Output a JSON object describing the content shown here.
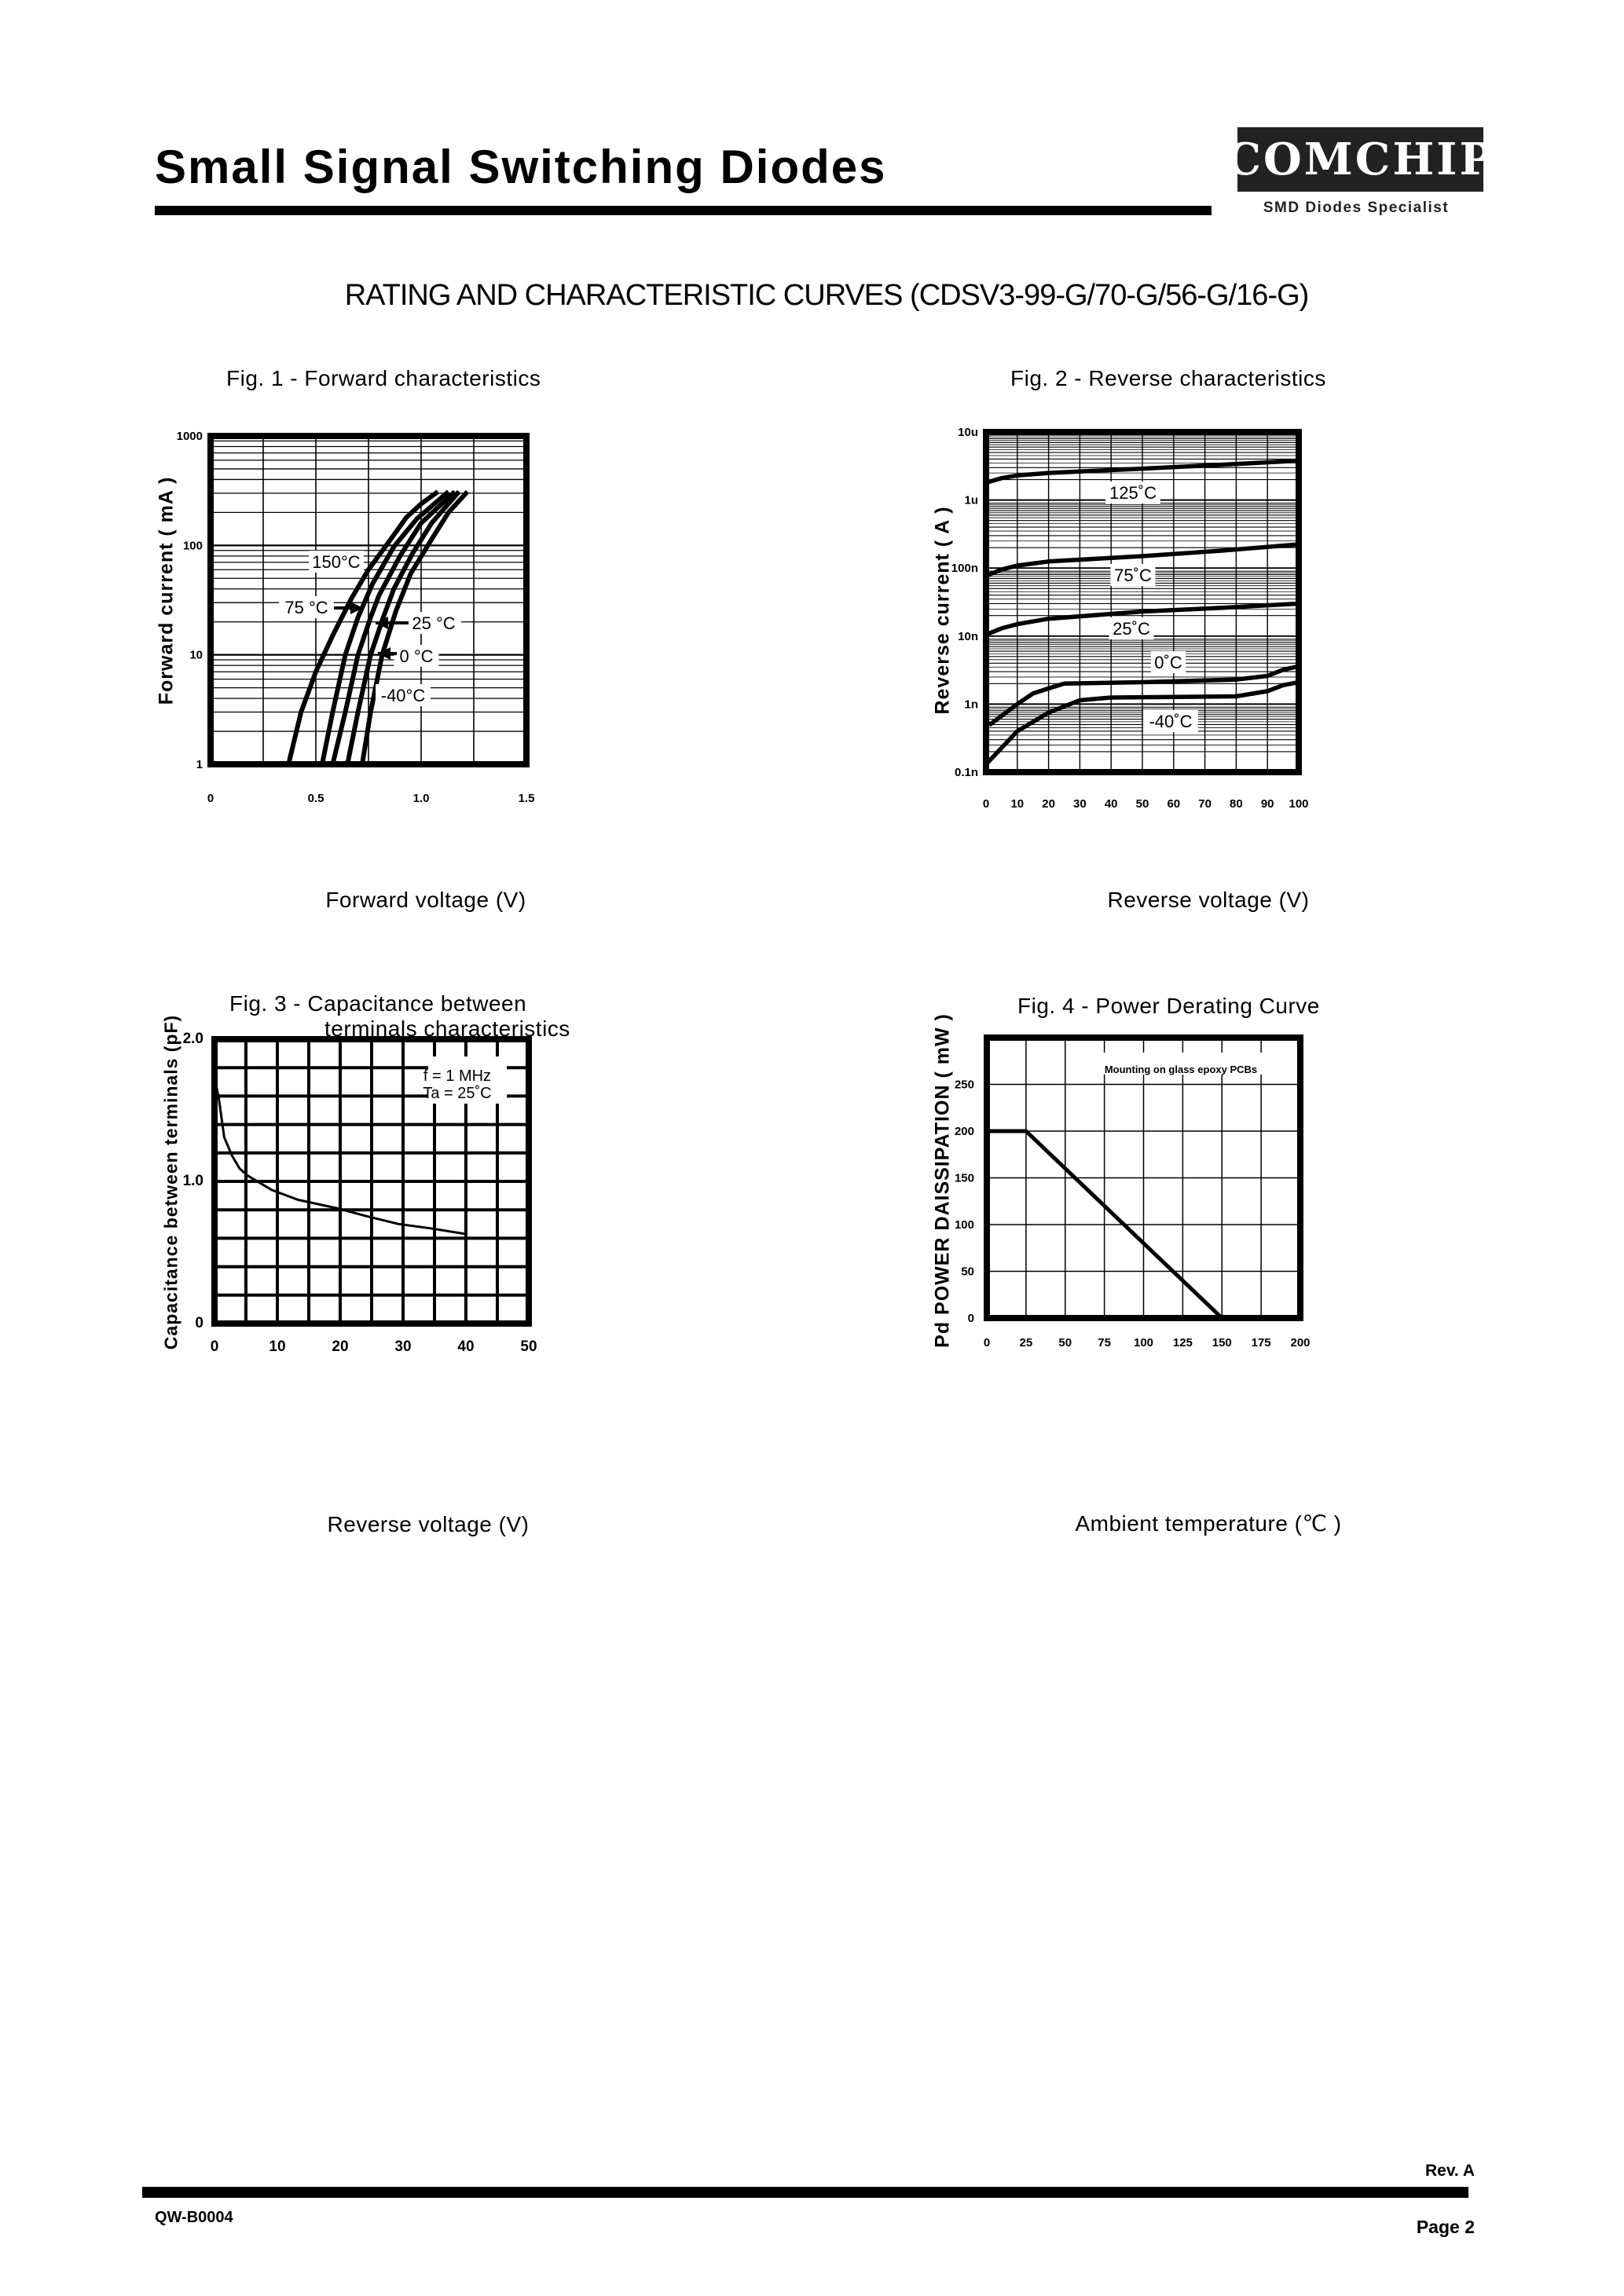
{
  "header": {
    "title": "Small Signal Switching Diodes",
    "logo_text": "COMCHIP",
    "logo_tagline": "SMD Diodes Specialist"
  },
  "subtitle": "RATING AND CHARACTERISTIC CURVES (CDSV3-99-G/70-G/56-G/16-G)",
  "footer": {
    "revision": "Rev. A",
    "doc_number": "QW-B0004",
    "page": "Page 2"
  },
  "chart_data": [
    {
      "type": "line",
      "title": "Fig. 1 -  Forward characteristics",
      "xlabel": "Forward voltage (V)",
      "ylabel": "Forward current ( mA )",
      "xlim": [
        0,
        1.5
      ],
      "ylim": [
        1,
        1000
      ],
      "yscale": "log",
      "grid": true,
      "x_ticks": [
        {
          "value": 0,
          "label": "0"
        },
        {
          "value": 0.5,
          "label": "0.5"
        },
        {
          "value": 1.0,
          "label": "1.0"
        },
        {
          "value": 1.5,
          "label": "1.5"
        }
      ],
      "y_ticks": [
        {
          "value": 1,
          "label": "1"
        },
        {
          "value": 10,
          "label": "10"
        },
        {
          "value": 100,
          "label": "100"
        },
        {
          "value": 1000,
          "label": "1000"
        }
      ],
      "series": [
        {
          "name": "150°C",
          "points": [
            [
              0.37,
              1
            ],
            [
              0.43,
              3
            ],
            [
              0.5,
              7
            ],
            [
              0.58,
              15
            ],
            [
              0.67,
              33
            ],
            [
              0.75,
              60
            ],
            [
              0.85,
              110
            ],
            [
              0.93,
              180
            ],
            [
              1.0,
              240
            ],
            [
              1.08,
              310
            ]
          ]
        },
        {
          "name": "75 °C",
          "points": [
            [
              0.53,
              1
            ],
            [
              0.58,
              3
            ],
            [
              0.64,
              10
            ],
            [
              0.7,
              22
            ],
            [
              0.77,
              45
            ],
            [
              0.87,
              97
            ],
            [
              0.98,
              175
            ],
            [
              1.13,
              310
            ]
          ]
        },
        {
          "name": "25 °C",
          "points": [
            [
              0.58,
              1
            ],
            [
              0.64,
              3
            ],
            [
              0.7,
              10
            ],
            [
              0.76,
              22
            ],
            [
              0.8,
              35
            ],
            [
              0.9,
              80
            ],
            [
              1.0,
              160
            ],
            [
              1.16,
              310
            ]
          ]
        },
        {
          "name": "0 °C",
          "points": [
            [
              0.65,
              1
            ],
            [
              0.7,
              3
            ],
            [
              0.76,
              10
            ],
            [
              0.82,
              22
            ],
            [
              0.87,
              40
            ],
            [
              0.96,
              85
            ],
            [
              1.05,
              160
            ],
            [
              1.18,
              310
            ]
          ]
        },
        {
          "name": "-40°C",
          "points": [
            [
              0.72,
              1
            ],
            [
              0.76,
              3
            ],
            [
              0.815,
              10
            ],
            [
              0.88,
              25
            ],
            [
              0.95,
              55
            ],
            [
              1.045,
              110
            ],
            [
              1.13,
              200
            ],
            [
              1.22,
              310
            ]
          ]
        }
      ]
    },
    {
      "type": "line",
      "title": "Fig. 2 -  Reverse characteristics",
      "xlabel": "Reverse voltage (V)",
      "ylabel": "Reverse  current ( A )",
      "xlim": [
        0,
        100
      ],
      "ylim": [
        1e-10,
        1e-05
      ],
      "yscale": "log",
      "grid": true,
      "x_ticks": [
        {
          "value": 0,
          "label": "0"
        },
        {
          "value": 10,
          "label": "10"
        },
        {
          "value": 20,
          "label": "20"
        },
        {
          "value": 30,
          "label": "30"
        },
        {
          "value": 40,
          "label": "40"
        },
        {
          "value": 50,
          "label": "50"
        },
        {
          "value": 60,
          "label": "60"
        },
        {
          "value": 70,
          "label": "70"
        },
        {
          "value": 80,
          "label": "80"
        },
        {
          "value": 90,
          "label": "90"
        },
        {
          "value": 100,
          "label": "100"
        }
      ],
      "y_ticks": [
        {
          "value": 1e-10,
          "label": "0.1n"
        },
        {
          "value": 1e-09,
          "label": "1n"
        },
        {
          "value": 1e-08,
          "label": "10n"
        },
        {
          "value": 1e-07,
          "label": "100n"
        },
        {
          "value": 1e-06,
          "label": "1u"
        },
        {
          "value": 1e-05,
          "label": "10u"
        }
      ],
      "series": [
        {
          "name": "125˚C",
          "points": [
            [
              0,
              1.8e-06
            ],
            [
              5,
              2.1e-06
            ],
            [
              10,
              2.3e-06
            ],
            [
              20,
              2.5e-06
            ],
            [
              50,
              2.9e-06
            ],
            [
              75,
              3.3e-06
            ],
            [
              100,
              3.8e-06
            ]
          ]
        },
        {
          "name": "75˚C",
          "points": [
            [
              0,
              7.7e-08
            ],
            [
              5,
              9.5e-08
            ],
            [
              10,
              1.09e-07
            ],
            [
              20,
              1.25e-07
            ],
            [
              50,
              1.5e-07
            ],
            [
              75,
              1.8e-07
            ],
            [
              100,
              2.23e-07
            ]
          ]
        },
        {
          "name": "25˚C",
          "points": [
            [
              0,
              1.05e-08
            ],
            [
              5,
              1.3e-08
            ],
            [
              10,
              1.5e-08
            ],
            [
              20,
              1.8e-08
            ],
            [
              50,
              2.3e-08
            ],
            [
              75,
              2.6e-08
            ],
            [
              100,
              3e-08
            ]
          ]
        },
        {
          "name": "0˚C",
          "points": [
            [
              1,
              4.9e-10
            ],
            [
              10,
              1e-09
            ],
            [
              15,
              1.43e-09
            ],
            [
              20,
              1.7e-09
            ],
            [
              25,
              2e-09
            ],
            [
              50,
              2.1e-09
            ],
            [
              80,
              2.3e-09
            ],
            [
              90,
              2.6e-09
            ],
            [
              95,
              3.2e-09
            ],
            [
              100,
              3.6e-09
            ]
          ]
        },
        {
          "name": "-40˚C",
          "points": [
            [
              0,
              1.3e-10
            ],
            [
              10,
              4e-10
            ],
            [
              20,
              7.5e-10
            ],
            [
              30,
              1.14e-09
            ],
            [
              40,
              1.25e-09
            ],
            [
              80,
              1.3e-09
            ],
            [
              90,
              1.55e-09
            ],
            [
              95,
              1.9e-09
            ],
            [
              100,
              2.1e-09
            ]
          ]
        }
      ]
    },
    {
      "type": "line",
      "title": "Fig. 3 -  Capacitance between",
      "title_line2": "terminals characteristics",
      "xlabel": "Reverse voltage (V)",
      "ylabel": "Capacitance between terminals (pF)",
      "xlim": [
        0,
        50
      ],
      "ylim": [
        0,
        2.0
      ],
      "grid": true,
      "x_ticks": [
        {
          "value": 0,
          "label": "0"
        },
        {
          "value": 10,
          "label": "10"
        },
        {
          "value": 20,
          "label": "20"
        },
        {
          "value": 30,
          "label": "30"
        },
        {
          "value": 40,
          "label": "40"
        },
        {
          "value": 50,
          "label": "50"
        }
      ],
      "y_ticks": [
        {
          "value": 0,
          "label": "0"
        },
        {
          "value": 1.0,
          "label": "1.0"
        },
        {
          "value": 2.0,
          "label": "2.0"
        }
      ],
      "annotations": [
        "f = 1 MHz",
        "Ta = 25˚C"
      ],
      "series": [
        {
          "points": [
            [
              0.1,
              1.71
            ],
            [
              0.7,
              1.58
            ],
            [
              1.55,
              1.31
            ],
            [
              2.8,
              1.18
            ],
            [
              4,
              1.09
            ],
            [
              5.3,
              1.04
            ],
            [
              7.2,
              0.99
            ],
            [
              9.1,
              0.94
            ],
            [
              13.3,
              0.87
            ],
            [
              19.6,
              0.81
            ],
            [
              24.2,
              0.755
            ],
            [
              29.3,
              0.7
            ],
            [
              34.3,
              0.67
            ],
            [
              40,
              0.63
            ]
          ]
        }
      ]
    },
    {
      "type": "line",
      "title": "Fig. 4 - Power Derating Curve",
      "xlabel": "Ambient temperature (℃ )",
      "ylabel": "Pd POWER DAISSIPATION ( mW )",
      "xlim": [
        0,
        200
      ],
      "ylim": [
        0,
        300
      ],
      "grid": true,
      "x_ticks": [
        {
          "value": 0,
          "label": "0"
        },
        {
          "value": 25,
          "label": "25"
        },
        {
          "value": 50,
          "label": "50"
        },
        {
          "value": 75,
          "label": "75"
        },
        {
          "value": 100,
          "label": "100"
        },
        {
          "value": 125,
          "label": "125"
        },
        {
          "value": 150,
          "label": "150"
        },
        {
          "value": 175,
          "label": "175"
        },
        {
          "value": 200,
          "label": "200"
        }
      ],
      "y_ticks": [
        {
          "value": 0,
          "label": "0"
        },
        {
          "value": 50,
          "label": "50"
        },
        {
          "value": 100,
          "label": "100"
        },
        {
          "value": 150,
          "label": "150"
        },
        {
          "value": 200,
          "label": "200"
        },
        {
          "value": 250,
          "label": "250"
        }
      ],
      "annotations": [
        "Mounting on glass epoxy PCBs"
      ],
      "series": [
        {
          "points": [
            [
              0,
              200
            ],
            [
              25,
              200
            ],
            [
              150,
              0
            ]
          ]
        }
      ]
    }
  ]
}
